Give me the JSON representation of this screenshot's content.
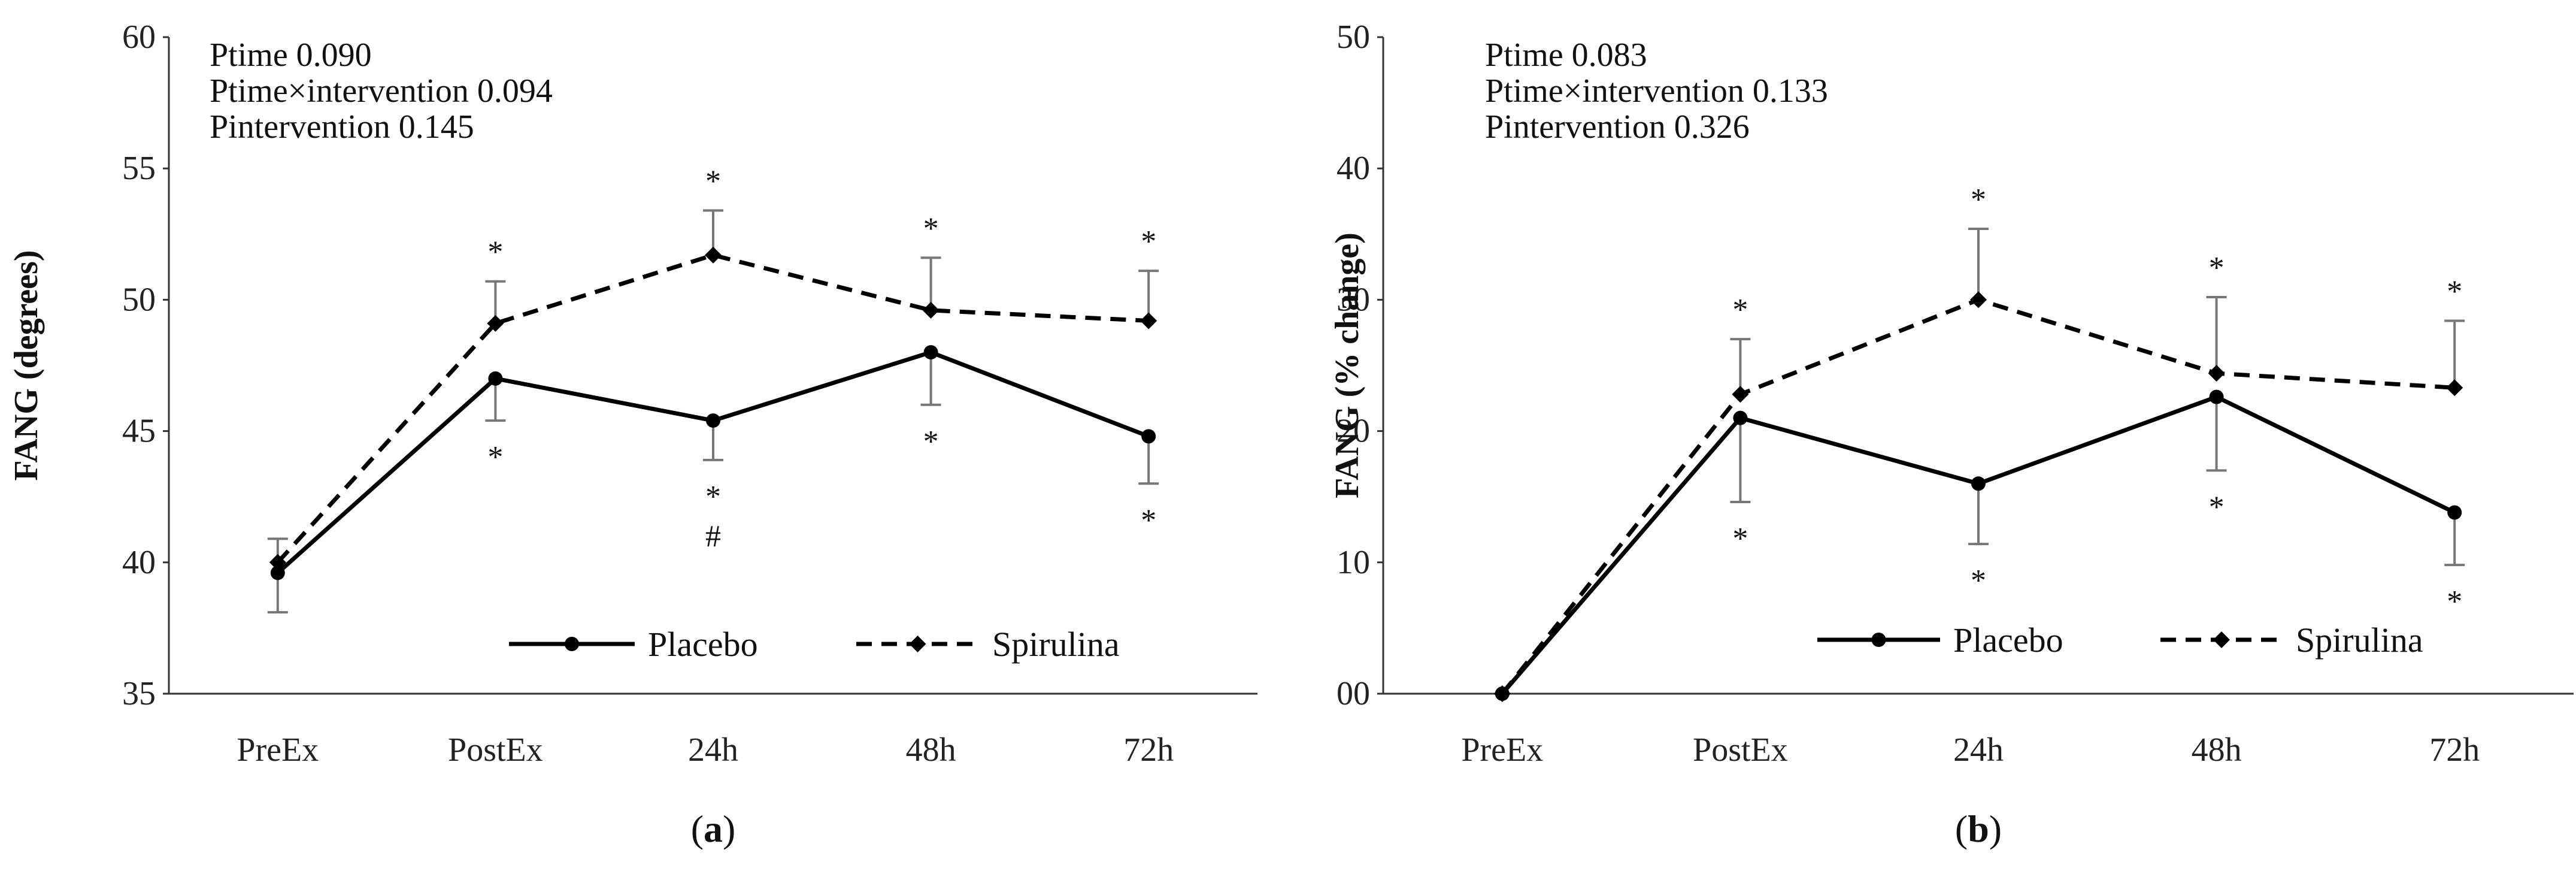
{
  "chart_data": [
    {
      "id": "a",
      "type": "line",
      "panel_label": "(a)",
      "bold_letter": "a",
      "ylabel": "FANG (degrees)",
      "ylim": [
        35,
        60
      ],
      "yticks": [
        35,
        40,
        45,
        50,
        55,
        60
      ],
      "ytick_labels": [
        "35",
        "40",
        "45",
        "50",
        "55",
        "60"
      ],
      "categories": [
        "PreEx",
        "PostEx",
        "24h",
        "48h",
        "72h"
      ],
      "annotations": [
        "Ptime 0.090",
        "Ptime×intervention 0.094",
        "Pintervention 0.145"
      ],
      "series": [
        {
          "name": "Placebo",
          "style": "solid",
          "marker": "circle",
          "values": [
            39.6,
            47.0,
            45.4,
            48.0,
            44.8
          ],
          "error_low": [
            1.5,
            1.6,
            1.5,
            2.0,
            1.8
          ],
          "error_high": [
            0,
            0,
            0,
            0,
            0
          ],
          "marks": [
            "",
            "*",
            "*",
            "*",
            "*"
          ],
          "marks2": [
            "",
            "",
            "#",
            "",
            ""
          ]
        },
        {
          "name": "Spirulina",
          "style": "dashed",
          "marker": "diamond",
          "values": [
            40.0,
            49.1,
            51.7,
            49.6,
            49.2
          ],
          "error_low": [
            0,
            0,
            0,
            0,
            0
          ],
          "error_high": [
            0.9,
            1.6,
            1.7,
            2.0,
            1.9
          ],
          "marks": [
            "",
            "*",
            "*",
            "*",
            "*"
          ],
          "marks2": [
            "",
            "",
            "",
            "",
            ""
          ]
        }
      ]
    },
    {
      "id": "b",
      "type": "line",
      "panel_label": "(b)",
      "bold_letter": "b",
      "ylabel": "FANG (% change)",
      "ylim": [
        0,
        50
      ],
      "yticks": [
        0,
        10,
        20,
        30,
        40,
        50
      ],
      "ytick_labels": [
        "00",
        "10",
        "20",
        "30",
        "40",
        "50"
      ],
      "categories": [
        "PreEx",
        "PostEx",
        "24h",
        "48h",
        "72h"
      ],
      "annotations": [
        "Ptime 0.083",
        "Ptime×intervention 0.133",
        "Pintervention 0.326"
      ],
      "series": [
        {
          "name": "Placebo",
          "style": "solid",
          "marker": "circle",
          "values": [
            0,
            21.0,
            16.0,
            22.6,
            13.8
          ],
          "error_low": [
            0,
            6.4,
            4.6,
            5.6,
            4.0
          ],
          "error_high": [
            0,
            0,
            0,
            0,
            0
          ],
          "marks": [
            "",
            "*",
            "*",
            "*",
            "*"
          ],
          "marks2": [
            "",
            "",
            "",
            "",
            ""
          ]
        },
        {
          "name": "Spirulina",
          "style": "dashed",
          "marker": "diamond",
          "values": [
            0,
            22.8,
            30.0,
            24.4,
            23.3
          ],
          "error_low": [
            0,
            0,
            0,
            0,
            0
          ],
          "error_high": [
            0,
            4.2,
            5.4,
            5.8,
            5.1
          ],
          "marks": [
            "",
            "*",
            "*",
            "*",
            "*"
          ],
          "marks2": [
            "",
            "",
            "",
            "",
            ""
          ]
        }
      ]
    }
  ]
}
